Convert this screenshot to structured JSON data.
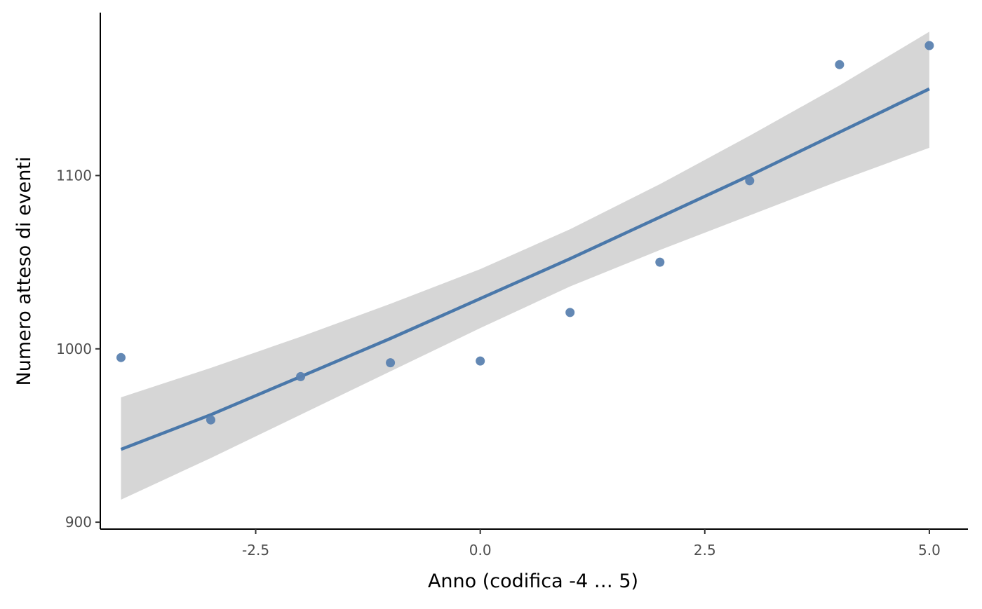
{
  "chart_data": {
    "type": "scatter",
    "title": "",
    "xlabel": "Anno (codifica -4 … 5)",
    "ylabel": "Numero atteso di eventi",
    "xlim": [
      -4.23,
      5.43
    ],
    "ylim": [
      896,
      1194
    ],
    "x_ticks": [
      -2.5,
      0.0,
      2.5,
      5.0
    ],
    "x_tick_labels": [
      "-2.5",
      "0.0",
      "2.5",
      "5.0"
    ],
    "y_ticks": [
      900,
      1000,
      1100
    ],
    "y_tick_labels": [
      "900",
      "1000",
      "1100"
    ],
    "grid": false,
    "points": {
      "x": [
        -4,
        -3,
        -2,
        -1,
        0,
        1,
        2,
        3,
        4,
        5
      ],
      "y": [
        995,
        959,
        984,
        992,
        993,
        1021,
        1050,
        1097,
        1164,
        1175
      ]
    },
    "fit": {
      "x": [
        -4,
        -3,
        -2,
        -1,
        0,
        1,
        2,
        3,
        4,
        5
      ],
      "y": [
        942,
        962,
        984,
        1006,
        1029,
        1052,
        1076,
        1100,
        1125,
        1150
      ]
    },
    "band": {
      "x": [
        -4,
        -3,
        -2,
        -1,
        0,
        1,
        2,
        3,
        4,
        5
      ],
      "lower": [
        913,
        937,
        962,
        987,
        1012,
        1036,
        1057,
        1077,
        1097,
        1116
      ],
      "upper": [
        972,
        989,
        1007,
        1026,
        1046,
        1069,
        1095,
        1123,
        1152,
        1183
      ]
    },
    "colors": {
      "points": "#5b82b0",
      "line": "#4a78aa",
      "band": "#d6d6d6",
      "axis": "#000000"
    }
  }
}
